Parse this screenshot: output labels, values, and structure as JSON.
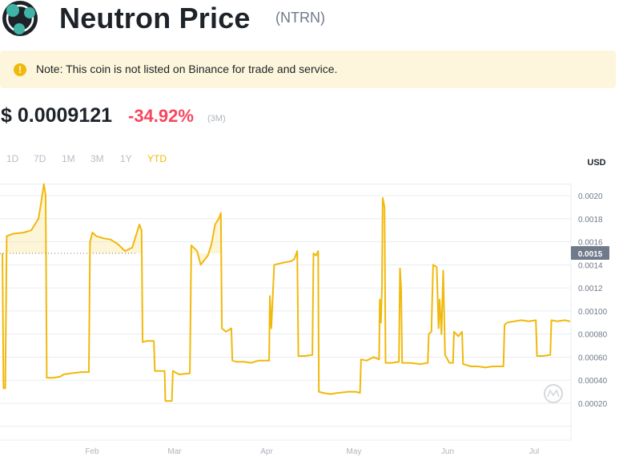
{
  "header": {
    "title": "Neutron Price",
    "ticker": "(NTRN)",
    "logo_icon": "neutron-logo-icon"
  },
  "note": {
    "icon": "warning-circle-icon",
    "icon_glyph": "!",
    "text": "Note: This coin is not listed on Binance for trade and service."
  },
  "price": {
    "value": "$ 0.0009121",
    "change": "-34.92%",
    "period": "(3M)"
  },
  "ranges": [
    {
      "label": "1D",
      "active": false
    },
    {
      "label": "7D",
      "active": false
    },
    {
      "label": "1M",
      "active": false
    },
    {
      "label": "3M",
      "active": false
    },
    {
      "label": "1Y",
      "active": false
    },
    {
      "label": "YTD",
      "active": true
    }
  ],
  "colors": {
    "line": "#f0b90b",
    "negative": "#f6465d",
    "grid": "#eaecef",
    "marker_bg": "#707a8a"
  },
  "chart_data": {
    "type": "line",
    "currency_label": "USD",
    "x_ticks": [
      "Feb",
      "Mar",
      "Apr",
      "May",
      "Jun",
      "Jul"
    ],
    "y_ticks": [
      "0.0020",
      "0.0018",
      "0.0016",
      "0.0015",
      "0.0014",
      "0.0012",
      "0.00100",
      "0.00080",
      "0.00060",
      "0.00040",
      "0.00020"
    ],
    "current_marker": "0.0015",
    "ylim": [
      0.0001,
      0.0021
    ],
    "watermark_icon": "coinmarketcap-watermark-icon",
    "series": [
      {
        "values": [
          [
            0.0,
            0.0015
          ],
          [
            0.3,
            0.00033
          ],
          [
            0.8,
            0.00033
          ],
          [
            1.2,
            0.00165
          ],
          [
            3,
            0.00167
          ],
          [
            6,
            0.00168
          ],
          [
            8,
            0.0017
          ],
          [
            9,
            0.00175
          ],
          [
            10,
            0.0018
          ],
          [
            10.8,
            0.00195
          ],
          [
            11.5,
            0.0021
          ],
          [
            12,
            0.002
          ],
          [
            12.3,
            0.00042
          ],
          [
            14,
            0.00042
          ],
          [
            16,
            0.00043
          ],
          [
            17,
            0.00045
          ],
          [
            19,
            0.00046
          ],
          [
            22,
            0.00047
          ],
          [
            24,
            0.00047
          ],
          [
            24.3,
            0.0016
          ],
          [
            25,
            0.00168
          ],
          [
            26,
            0.00165
          ],
          [
            28,
            0.00163
          ],
          [
            30,
            0.00162
          ],
          [
            32,
            0.00158
          ],
          [
            34,
            0.00152
          ],
          [
            36,
            0.00155
          ],
          [
            37,
            0.00165
          ],
          [
            38,
            0.00175
          ],
          [
            38.6,
            0.0017
          ],
          [
            38.9,
            0.00073
          ],
          [
            40,
            0.00074
          ],
          [
            42,
            0.00074
          ],
          [
            42.3,
            0.00048
          ],
          [
            45,
            0.00048
          ],
          [
            45.2,
            0.00022
          ],
          [
            47,
            0.00022
          ],
          [
            47.3,
            0.00048
          ],
          [
            49,
            0.00045
          ],
          [
            52,
            0.00046
          ],
          [
            52.4,
            0.00157
          ],
          [
            54,
            0.00152
          ],
          [
            55,
            0.0014
          ],
          [
            57,
            0.00148
          ],
          [
            58,
            0.00158
          ],
          [
            59,
            0.00175
          ],
          [
            60,
            0.0018
          ],
          [
            60.6,
            0.00185
          ],
          [
            60.9,
            0.00085
          ],
          [
            62,
            0.00082
          ],
          [
            63.5,
            0.00085
          ],
          [
            63.8,
            0.00057
          ],
          [
            65,
            0.00056
          ],
          [
            67,
            0.00056
          ],
          [
            69,
            0.00055
          ],
          [
            71,
            0.00057
          ],
          [
            74,
            0.00057
          ],
          [
            74.2,
            0.00113
          ],
          [
            74.6,
            0.00085
          ],
          [
            75,
            0.00112
          ],
          [
            75.4,
            0.0014
          ],
          [
            78,
            0.00142
          ],
          [
            80,
            0.00143
          ],
          [
            81,
            0.00145
          ],
          [
            81.8,
            0.00152
          ],
          [
            82.1,
            0.00061
          ],
          [
            84,
            0.00061
          ],
          [
            86,
            0.00062
          ],
          [
            86.3,
            0.0015
          ],
          [
            87,
            0.00148
          ],
          [
            87.6,
            0.00152
          ],
          [
            87.8,
            0.0003
          ],
          [
            89,
            0.00029
          ],
          [
            91,
            0.00028
          ],
          [
            93,
            0.00029
          ],
          [
            96,
            0.0003
          ],
          [
            98,
            0.0003
          ],
          [
            99.2,
            0.00029
          ],
          [
            99.5,
            0.00058
          ],
          [
            101,
            0.00057
          ],
          [
            103,
            0.0006
          ],
          [
            104.5,
            0.00058
          ],
          [
            104.7,
            0.0011
          ],
          [
            105,
            0.0009
          ],
          [
            105.3,
            0.0012
          ],
          [
            105.5,
            0.00198
          ],
          [
            106,
            0.0019
          ],
          [
            106.3,
            0.00055
          ],
          [
            108,
            0.00055
          ],
          [
            110,
            0.00056
          ],
          [
            110.3,
            0.00137
          ],
          [
            110.6,
            0.0012
          ],
          [
            110.9,
            0.00055
          ],
          [
            113,
            0.00055
          ],
          [
            116,
            0.00054
          ],
          [
            118,
            0.00055
          ],
          [
            118.3,
            0.0008
          ],
          [
            119,
            0.00082
          ],
          [
            119.5,
            0.0014
          ],
          [
            120.5,
            0.00138
          ],
          [
            121,
            0.00085
          ],
          [
            121.3,
            0.0011
          ],
          [
            121.8,
            0.0008
          ],
          [
            122.3,
            0.00135
          ],
          [
            122.8,
            0.00062
          ],
          [
            124,
            0.00055
          ],
          [
            125,
            0.00055
          ],
          [
            125.3,
            0.00082
          ],
          [
            126.5,
            0.00078
          ],
          [
            127.5,
            0.00082
          ],
          [
            127.8,
            0.00054
          ],
          [
            130,
            0.00052
          ],
          [
            132,
            0.00052
          ],
          [
            134,
            0.00051
          ],
          [
            136,
            0.00052
          ],
          [
            138,
            0.00052
          ],
          [
            139,
            0.00052
          ],
          [
            139.3,
            0.00088
          ],
          [
            140,
            0.0009
          ],
          [
            142,
            0.00091
          ],
          [
            144,
            0.00092
          ],
          [
            146,
            0.00091
          ],
          [
            148,
            0.00092
          ],
          [
            148.3,
            0.00061
          ],
          [
            150,
            0.00061
          ],
          [
            152,
            0.00062
          ],
          [
            152.3,
            0.00092
          ],
          [
            154,
            0.00091
          ],
          [
            156,
            0.00092
          ],
          [
            157.5,
            0.00091
          ]
        ]
      }
    ]
  }
}
